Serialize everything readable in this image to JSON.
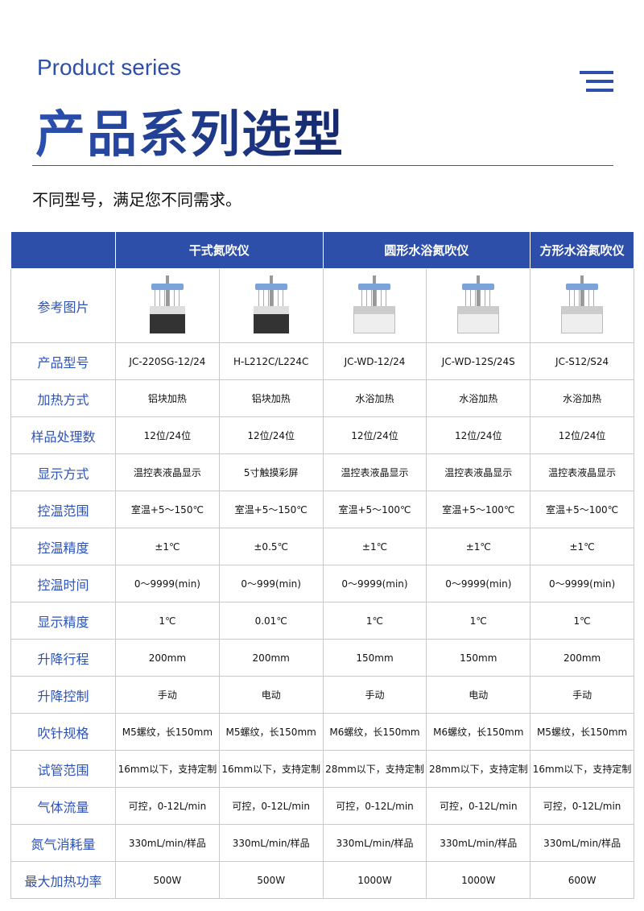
{
  "header": {
    "subtitle_en": "Product series",
    "title": "产品系列选型",
    "tagline": "不同型号，满足您不同需求。",
    "menu_icon": "menu-lines-icon",
    "accent": "#2d4faa"
  },
  "table": {
    "groups": [
      {
        "label": "干式氮吹仪",
        "span": 2
      },
      {
        "label": "圆形水浴氮吹仪",
        "span": 2
      },
      {
        "label": "方形水浴氮吹仪",
        "span": 1
      }
    ],
    "image_row_label": "参考图片",
    "rows": [
      {
        "label": "产品型号",
        "values": [
          "JC-220SG-12/24",
          "H-L212C/L224C",
          "JC-WD-12/24",
          "JC-WD-12S/24S",
          "JC-S12/S24"
        ]
      },
      {
        "label": "加热方式",
        "values": [
          "铝块加热",
          "铝块加热",
          "水浴加热",
          "水浴加热",
          "水浴加热"
        ]
      },
      {
        "label": "样品处理数",
        "values": [
          "12位/24位",
          "12位/24位",
          "12位/24位",
          "12位/24位",
          "12位/24位"
        ]
      },
      {
        "label": "显示方式",
        "values": [
          "温控表液晶显示",
          "5寸触摸彩屏",
          "温控表液晶显示",
          "温控表液晶显示",
          "温控表液晶显示"
        ]
      },
      {
        "label": "控温范围",
        "values": [
          "室温+5～150℃",
          "室温+5～150℃",
          "室温+5～100℃",
          "室温+5～100℃",
          "室温+5～100℃"
        ]
      },
      {
        "label": "控温精度",
        "values": [
          "±1℃",
          "±0.5℃",
          "±1℃",
          "±1℃",
          "±1℃"
        ]
      },
      {
        "label": "控温时间",
        "values": [
          "0～9999(min)",
          "0～999(min)",
          "0～9999(min)",
          "0～9999(min)",
          "0～9999(min)"
        ]
      },
      {
        "label": "显示精度",
        "values": [
          "1℃",
          "0.01℃",
          "1℃",
          "1℃",
          "1℃"
        ]
      },
      {
        "label": "升降行程",
        "values": [
          "200mm",
          "200mm",
          "150mm",
          "150mm",
          "200mm"
        ]
      },
      {
        "label": "升降控制",
        "values": [
          "手动",
          "电动",
          "手动",
          "电动",
          "手动"
        ]
      },
      {
        "label": "吹针规格",
        "values": [
          "M5螺纹，长150mm",
          "M5螺纹，长150mm",
          "M6螺纹，长150mm",
          "M6螺纹，长150mm",
          "M5螺纹，长150mm"
        ]
      },
      {
        "label": "试管范围",
        "values": [
          "16mm以下，支持定制",
          "16mm以下，支持定制",
          "28mm以下，支持定制",
          "28mm以下，支持定制",
          "16mm以下，支持定制"
        ]
      },
      {
        "label": "气体流量",
        "values": [
          "可控，0-12L/min",
          "可控，0-12L/min",
          "可控，0-12L/min",
          "可控，0-12L/min",
          "可控，0-12L/min"
        ]
      },
      {
        "label": "氮气消耗量",
        "values": [
          "330mL/min/样品",
          "330mL/min/样品",
          "330mL/min/样品",
          "330mL/min/样品",
          "330mL/min/样品"
        ]
      },
      {
        "label": "最大加热功率",
        "values": [
          "500W",
          "500W",
          "1000W",
          "1000W",
          "600W"
        ]
      }
    ]
  }
}
